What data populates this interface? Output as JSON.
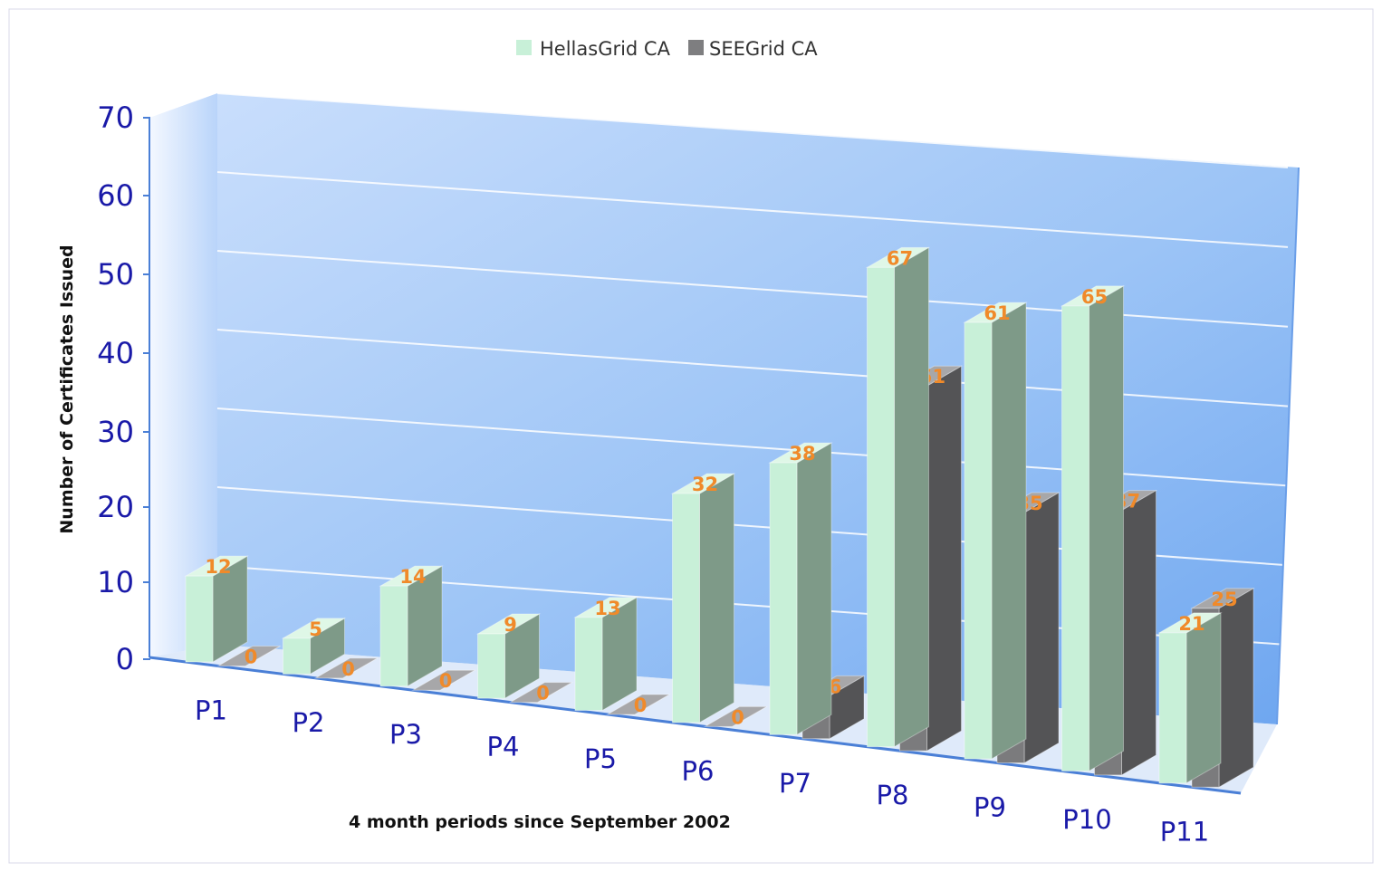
{
  "chart_data": {
    "type": "bar",
    "title": "",
    "xlabel": "4 month periods since September 2002",
    "ylabel": "Number of Certificates Issued",
    "ylim": [
      0,
      70
    ],
    "yticks": [
      "0",
      "10",
      "20",
      "30",
      "40",
      "50",
      "60",
      "70"
    ],
    "categories": [
      "P1",
      "P2",
      "P3",
      "P4",
      "P5",
      "P6",
      "P7",
      "P8",
      "P9",
      "P10",
      "P11"
    ],
    "series": [
      {
        "name": "HellasGrid CA",
        "values": [
          12,
          5,
          14,
          9,
          13,
          32,
          38,
          67,
          61,
          65,
          21
        ],
        "labels": [
          "12",
          "5",
          "14",
          "9",
          "13",
          "32",
          "38",
          "67",
          "61",
          "65",
          "21"
        ]
      },
      {
        "name": "SEEGrid CA",
        "values": [
          0,
          0,
          0,
          0,
          0,
          0,
          6,
          51,
          35,
          37,
          25
        ],
        "labels": [
          "0",
          "0",
          "0",
          "0",
          "0",
          "0",
          "6",
          "51",
          "35",
          "37",
          "25"
        ]
      }
    ],
    "legend_position": "top",
    "grid": true,
    "colors": {
      "HellasGrid CA": "#c8f0d8",
      "SEEGrid CA": "#7e7e80",
      "wall": "#8fbaf4",
      "label": "#f08a2a",
      "tick": "#1a1aa8"
    }
  }
}
